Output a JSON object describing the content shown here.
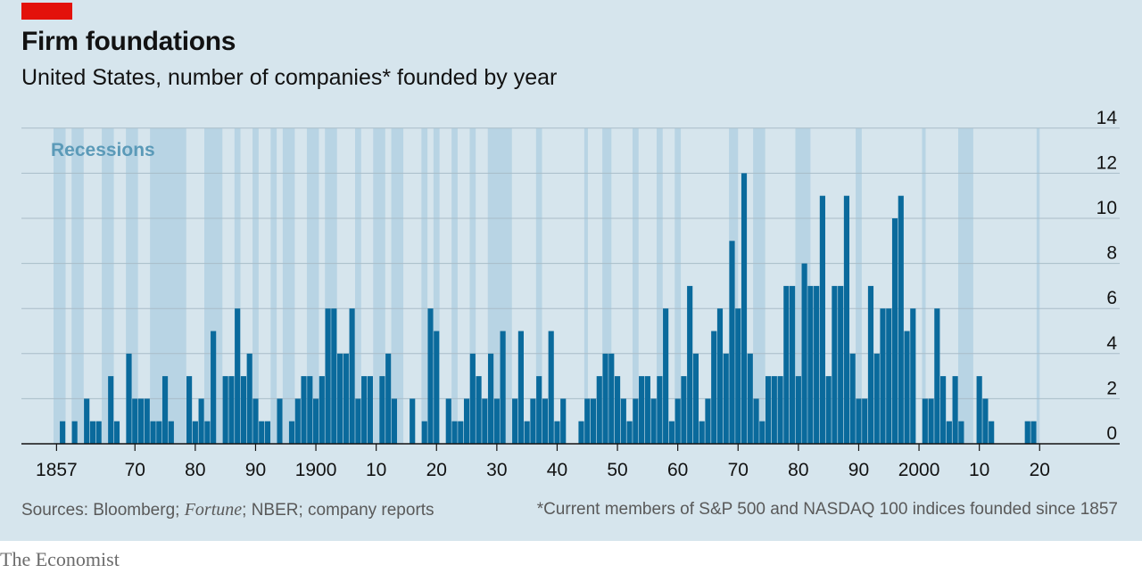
{
  "header": {
    "title": "Firm foundations",
    "subtitle": "United States, number of companies* founded by year"
  },
  "footer": {
    "source_prefix": "Sources: Bloomberg; ",
    "source_italic": "Fortune",
    "source_suffix": "; NBER; company reports",
    "footnote": "*Current members of S&P 500 and NASDAQ 100 indices founded since 1857",
    "brand": "The Economist"
  },
  "colors": {
    "bar": "#0a6a9c",
    "recession": "#b8d4e4",
    "grid": "#a9bcc8",
    "axis": "#121212",
    "brand_red": "#e3120b"
  },
  "chart_data": {
    "type": "bar",
    "x_start": 1857,
    "x_end": 2020,
    "ylim": [
      0,
      14
    ],
    "y_ticks": [
      0,
      2,
      4,
      6,
      8,
      10,
      12,
      14
    ],
    "x_tick_years": [
      1857,
      1870,
      1880,
      1890,
      1900,
      1910,
      1920,
      1930,
      1940,
      1950,
      1960,
      1970,
      1980,
      1990,
      2000,
      2010,
      2020
    ],
    "x_tick_labels": [
      "1857",
      "70",
      "80",
      "90",
      "1900",
      "10",
      "20",
      "30",
      "40",
      "50",
      "60",
      "70",
      "80",
      "90",
      "2000",
      "10",
      "20"
    ],
    "recession_label": "Recessions",
    "recessions": [
      [
        1857,
        1859
      ],
      [
        1860,
        1862
      ],
      [
        1865,
        1867
      ],
      [
        1869,
        1871
      ],
      [
        1873,
        1879
      ],
      [
        1882,
        1885
      ],
      [
        1887,
        1888
      ],
      [
        1890,
        1891
      ],
      [
        1893,
        1894
      ],
      [
        1895,
        1897
      ],
      [
        1899,
        1901
      ],
      [
        1902,
        1904
      ],
      [
        1907,
        1908
      ],
      [
        1910,
        1912
      ],
      [
        1913,
        1915
      ],
      [
        1918,
        1919
      ],
      [
        1920,
        1921
      ],
      [
        1923,
        1924
      ],
      [
        1926,
        1927
      ],
      [
        1929,
        1933
      ],
      [
        1937,
        1938
      ],
      [
        1945,
        1945.6
      ],
      [
        1948,
        1949.5
      ],
      [
        1953,
        1954
      ],
      [
        1957,
        1958
      ],
      [
        1960,
        1961
      ],
      [
        1969,
        1970.5
      ],
      [
        1973,
        1975
      ],
      [
        1980,
        1982.5
      ],
      [
        1990,
        1991
      ],
      [
        2001,
        2001.6
      ],
      [
        2007,
        2009.5
      ],
      [
        2020,
        2020.5
      ]
    ],
    "years": [
      1857,
      1858,
      1859,
      1860,
      1861,
      1862,
      1863,
      1864,
      1865,
      1866,
      1867,
      1868,
      1869,
      1870,
      1871,
      1872,
      1873,
      1874,
      1875,
      1876,
      1877,
      1878,
      1879,
      1880,
      1881,
      1882,
      1883,
      1884,
      1885,
      1886,
      1887,
      1888,
      1889,
      1890,
      1891,
      1892,
      1893,
      1894,
      1895,
      1896,
      1897,
      1898,
      1899,
      1900,
      1901,
      1902,
      1903,
      1904,
      1905,
      1906,
      1907,
      1908,
      1909,
      1910,
      1911,
      1912,
      1913,
      1914,
      1915,
      1916,
      1917,
      1918,
      1919,
      1920,
      1921,
      1922,
      1923,
      1924,
      1925,
      1926,
      1927,
      1928,
      1929,
      1930,
      1931,
      1932,
      1933,
      1934,
      1935,
      1936,
      1937,
      1938,
      1939,
      1940,
      1941,
      1942,
      1943,
      1944,
      1945,
      1946,
      1947,
      1948,
      1949,
      1950,
      1951,
      1952,
      1953,
      1954,
      1955,
      1956,
      1957,
      1958,
      1959,
      1960,
      1961,
      1962,
      1963,
      1964,
      1965,
      1966,
      1967,
      1968,
      1969,
      1970,
      1971,
      1972,
      1973,
      1974,
      1975,
      1976,
      1977,
      1978,
      1979,
      1980,
      1981,
      1982,
      1983,
      1984,
      1985,
      1986,
      1987,
      1988,
      1989,
      1990,
      1991,
      1992,
      1993,
      1994,
      1995,
      1996,
      1997,
      1998,
      1999,
      2000,
      2001,
      2002,
      2003,
      2004,
      2005,
      2006,
      2007,
      2008,
      2009,
      2010,
      2011,
      2012,
      2013,
      2014,
      2015,
      2016,
      2017,
      2018,
      2019,
      2020
    ],
    "values": [
      0,
      1,
      0,
      1,
      0,
      2,
      1,
      1,
      0,
      3,
      1,
      0,
      4,
      2,
      2,
      2,
      1,
      1,
      3,
      1,
      0,
      0,
      3,
      1,
      2,
      1,
      5,
      0,
      3,
      3,
      6,
      3,
      4,
      2,
      1,
      1,
      0,
      2,
      0,
      1,
      2,
      3,
      3,
      2,
      3,
      6,
      6,
      4,
      4,
      6,
      2,
      3,
      3,
      0,
      3,
      4,
      2,
      0,
      0,
      2,
      0,
      1,
      6,
      5,
      0,
      2,
      1,
      1,
      2,
      4,
      3,
      2,
      4,
      2,
      5,
      0,
      2,
      5,
      1,
      2,
      3,
      2,
      5,
      1,
      2,
      0,
      0,
      1,
      2,
      2,
      3,
      4,
      4,
      3,
      2,
      1,
      2,
      3,
      3,
      2,
      3,
      6,
      1,
      2,
      3,
      7,
      4,
      1,
      2,
      5,
      6,
      4,
      9,
      6,
      12,
      4,
      2,
      1,
      3,
      3,
      3,
      7,
      7,
      3,
      8,
      7,
      7,
      11,
      3,
      7,
      7,
      11,
      4,
      2,
      2,
      7,
      4,
      6,
      6,
      10,
      11,
      5,
      6,
      0,
      2,
      2,
      6,
      3,
      1,
      3,
      1,
      0,
      0,
      3,
      2,
      1,
      0,
      0,
      0,
      0,
      0,
      1,
      1,
      0
    ]
  }
}
